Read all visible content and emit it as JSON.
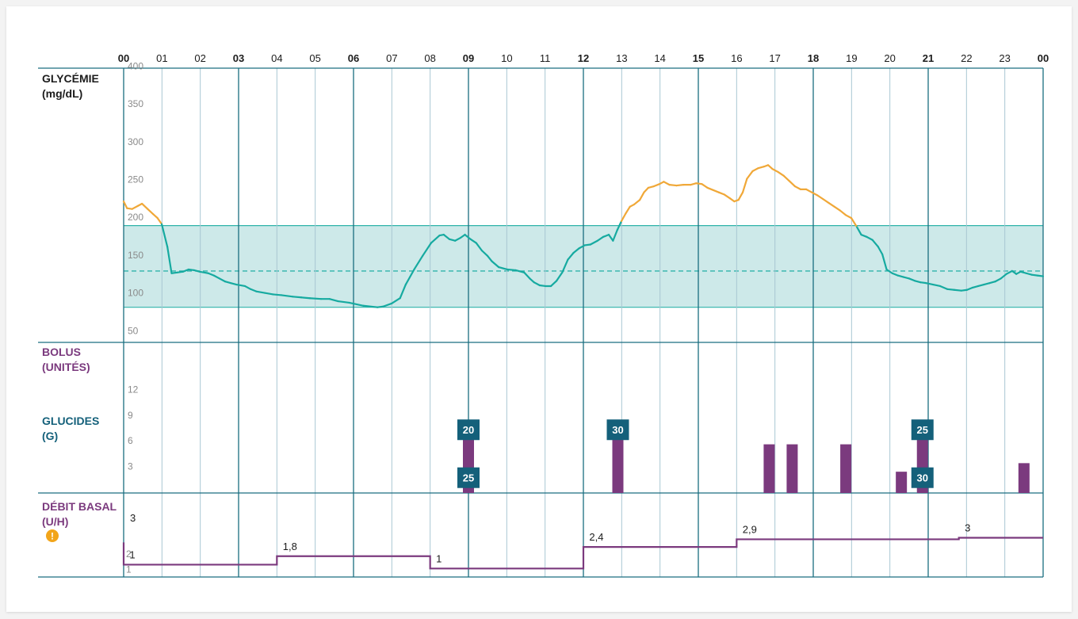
{
  "colors": {
    "grid_major": "#1a6e80",
    "grid_minor": "#a9c7d2",
    "target_band": "#cde9e9",
    "target_line": "#2fb3aa",
    "glucose_in_range": "#16aaa0",
    "glucose_high": "#f0a838",
    "bolus": "#7b3a7e",
    "carbs_label_bg": "#14607a",
    "basal": "#7b3a7e",
    "alert": "#f2a51a",
    "text_dark": "#1c1c1c",
    "text_axis": "#8a8a8a"
  },
  "sections": {
    "glycemia_label_1": "GLYCÉMIE",
    "glycemia_label_2": "(mg/dL)",
    "bolus_label_1": "BOLUS",
    "bolus_label_2": "(UNITÉS)",
    "carbs_label_1": "GLUCIDES",
    "carbs_label_2": "(G)",
    "basal_label_1": "DÉBIT BASAL",
    "basal_label_2": "(U/H)",
    "alert_icon": "exclamation-alert-icon",
    "alert_glyph": "!"
  },
  "chart_data": {
    "type": "line",
    "hours": [
      "00",
      "01",
      "02",
      "03",
      "04",
      "05",
      "06",
      "07",
      "08",
      "09",
      "10",
      "11",
      "12",
      "13",
      "14",
      "15",
      "16",
      "17",
      "18",
      "19",
      "20",
      "21",
      "22",
      "23",
      "00"
    ],
    "major_hours": [
      0,
      3,
      6,
      9,
      12,
      15,
      18,
      21,
      24
    ],
    "glucose": {
      "y_ticks": [
        "400",
        "350",
        "300",
        "250",
        "200",
        "150",
        "100",
        "50"
      ],
      "y_tick_values": [
        400,
        350,
        300,
        250,
        200,
        150,
        100,
        50
      ],
      "ylim": [
        25,
        405
      ],
      "target_range": [
        80,
        188
      ],
      "target_value": 128,
      "high_threshold": 188,
      "points": [
        [
          0,
          220
        ],
        [
          0.12,
          211
        ],
        [
          0.3,
          210
        ],
        [
          0.5,
          214
        ],
        [
          0.65,
          217
        ],
        [
          0.85,
          210
        ],
        [
          1.05,
          203
        ],
        [
          1.2,
          198
        ],
        [
          1.35,
          190
        ],
        [
          1.55,
          160
        ],
        [
          1.7,
          125
        ],
        [
          1.9,
          126
        ],
        [
          2.1,
          127
        ],
        [
          2.3,
          130
        ],
        [
          2.5,
          129
        ],
        [
          2.7,
          127
        ],
        [
          3.0,
          125
        ],
        [
          3.2,
          122
        ],
        [
          3.4,
          118
        ],
        [
          3.6,
          114
        ],
        [
          3.8,
          112
        ],
        [
          4.0,
          110
        ],
        [
          4.3,
          108
        ],
        [
          4.5,
          104
        ],
        [
          4.7,
          101
        ],
        [
          5.0,
          99
        ],
        [
          5.3,
          97
        ],
        [
          5.6,
          96
        ],
        [
          6.0,
          94
        ],
        [
          6.3,
          93
        ],
        [
          6.6,
          92
        ],
        [
          7.0,
          91
        ],
        [
          7.3,
          91
        ],
        [
          7.6,
          88
        ],
        [
          8.0,
          86
        ],
        [
          8.5,
          82
        ],
        [
          9.0,
          80
        ],
        [
          9.2,
          81
        ],
        [
          9.5,
          85
        ],
        [
          9.8,
          92
        ],
        [
          10.0,
          110
        ],
        [
          10.3,
          130
        ],
        [
          10.6,
          148
        ],
        [
          10.9,
          165
        ],
        [
          11.2,
          175
        ],
        [
          11.35,
          176
        ],
        [
          11.55,
          170
        ],
        [
          11.75,
          168
        ],
        [
          11.95,
          172
        ],
        [
          12.1,
          176
        ],
        [
          12.3,
          170
        ],
        [
          12.5,
          165
        ],
        [
          12.7,
          155
        ],
        [
          12.9,
          148
        ],
        [
          13.05,
          141
        ],
        [
          13.3,
          133
        ],
        [
          13.6,
          130
        ],
        [
          13.9,
          129
        ],
        [
          14.2,
          126
        ],
        [
          14.4,
          118
        ],
        [
          14.55,
          113
        ],
        [
          14.75,
          109
        ],
        [
          14.95,
          108
        ],
        [
          15.15,
          108
        ],
        [
          15.35,
          115
        ],
        [
          15.55,
          126
        ],
        [
          15.75,
          143
        ],
        [
          15.95,
          152
        ],
        [
          16.15,
          158
        ],
        [
          16.35,
          162
        ],
        [
          16.55,
          163
        ],
        [
          16.8,
          168
        ],
        [
          17.0,
          173
        ],
        [
          17.2,
          176
        ],
        [
          17.35,
          168
        ],
        [
          17.5,
          182
        ],
        [
          17.65,
          194
        ],
        [
          17.8,
          204
        ],
        [
          17.95,
          213
        ],
        [
          18.1,
          216
        ],
        [
          18.3,
          222
        ],
        [
          18.45,
          232
        ],
        [
          18.6,
          238
        ],
        [
          18.8,
          240
        ],
        [
          19.0,
          243
        ],
        [
          19.15,
          246
        ],
        [
          19.35,
          242
        ],
        [
          19.6,
          241
        ],
        [
          19.85,
          242
        ],
        [
          20.1,
          242
        ],
        [
          20.3,
          244
        ],
        [
          20.5,
          243
        ],
        [
          20.7,
          238
        ],
        [
          20.9,
          235
        ],
        [
          21.1,
          232
        ],
        [
          21.3,
          229
        ],
        [
          21.5,
          224
        ],
        [
          21.65,
          220
        ],
        [
          21.8,
          222
        ],
        [
          21.95,
          232
        ],
        [
          22.1,
          250
        ],
        [
          22.3,
          260
        ],
        [
          22.5,
          264
        ],
        [
          22.7,
          266
        ],
        [
          22.85,
          268
        ],
        [
          23.0,
          263
        ],
        [
          23.2,
          259
        ],
        [
          23.4,
          254
        ],
        [
          23.6,
          247
        ],
        [
          23.8,
          240
        ],
        [
          24.0,
          236
        ],
        [
          24.2,
          236
        ],
        [
          24.4,
          232
        ],
        [
          24.6,
          228
        ],
        [
          24.8,
          223
        ],
        [
          25.0,
          218
        ],
        [
          25.2,
          213
        ],
        [
          25.4,
          208
        ],
        [
          25.6,
          202
        ],
        [
          25.8,
          198
        ],
        [
          26.0,
          186
        ],
        [
          26.15,
          176
        ],
        [
          26.35,
          173
        ],
        [
          26.55,
          169
        ],
        [
          26.75,
          160
        ],
        [
          26.9,
          150
        ],
        [
          27.05,
          130
        ],
        [
          27.25,
          125
        ],
        [
          27.45,
          122
        ],
        [
          27.65,
          120
        ],
        [
          27.85,
          118
        ],
        [
          28.05,
          115
        ],
        [
          28.25,
          113
        ],
        [
          28.45,
          112
        ],
        [
          28.7,
          110
        ],
        [
          28.95,
          108
        ],
        [
          29.2,
          104
        ],
        [
          29.45,
          103
        ],
        [
          29.7,
          102
        ],
        [
          29.9,
          103
        ],
        [
          30.1,
          106
        ],
        [
          30.3,
          108
        ],
        [
          30.5,
          110
        ],
        [
          30.7,
          112
        ],
        [
          30.9,
          114
        ],
        [
          31.1,
          118
        ],
        [
          31.3,
          124
        ],
        [
          31.5,
          128
        ],
        [
          31.65,
          124
        ],
        [
          31.8,
          127
        ],
        [
          32.0,
          125
        ],
        [
          32.2,
          123
        ],
        [
          32.4,
          122
        ],
        [
          32.6,
          121
        ]
      ]
    },
    "bolus": {
      "y_ticks": [
        "12",
        "9",
        "6",
        "3"
      ],
      "y_tick_values": [
        12,
        9,
        6,
        3
      ],
      "ylim": [
        0,
        14
      ],
      "bars": [
        [
          9.0,
          6.5
        ],
        [
          12.9,
          6.5
        ],
        [
          16.85,
          5.5
        ],
        [
          17.45,
          5.5
        ],
        [
          18.85,
          5.5
        ],
        [
          20.3,
          2.3
        ],
        [
          20.85,
          6.5
        ],
        [
          23.5,
          3.3
        ]
      ]
    },
    "carbs": {
      "labels": [
        {
          "hour": 9.0,
          "value": "20",
          "level": 7.2
        },
        {
          "hour": 9.0,
          "value": "25",
          "level": 1.6
        },
        {
          "hour": 12.9,
          "value": "30",
          "level": 7.2
        },
        {
          "hour": 20.85,
          "value": "25",
          "level": 7.2
        },
        {
          "hour": 20.85,
          "value": "30",
          "level": 1.6
        }
      ]
    },
    "basal": {
      "y_ticks": [
        "2",
        "1"
      ],
      "y_tick_values": [
        2,
        1
      ],
      "ylim": [
        0.55,
        3.4
      ],
      "start_label": "3",
      "start_spike": [
        2.7,
        1.25
      ],
      "steps": [
        [
          0,
          4,
          1.25
        ],
        [
          4,
          8,
          1.8
        ],
        [
          8,
          12,
          1.0
        ],
        [
          12,
          16,
          2.4
        ],
        [
          16,
          21.8,
          2.9
        ],
        [
          21.8,
          24,
          3.0
        ]
      ],
      "step_labels": [
        {
          "hour": 0.05,
          "value": "1"
        },
        {
          "hour": 4.05,
          "value": "1,8"
        },
        {
          "hour": 8.05,
          "value": "1"
        },
        {
          "hour": 12.05,
          "value": "2,4"
        },
        {
          "hour": 16.05,
          "value": "2,9"
        },
        {
          "hour": 21.85,
          "value": "3"
        }
      ]
    }
  }
}
